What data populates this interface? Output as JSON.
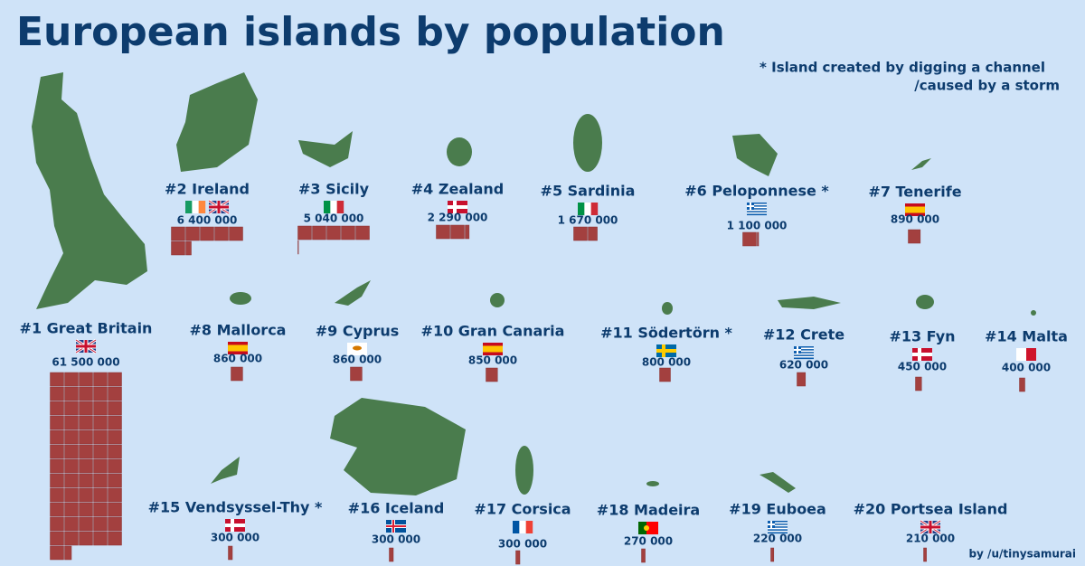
{
  "chart_data": {
    "type": "unit",
    "title": "European islands by population",
    "notes": [
      "* Island created by digging a channel",
      "/caused by a storm"
    ],
    "credit": "by /u/tinysamurai",
    "color": "#a3403f",
    "categories": [
      "#1 Great Britain",
      "#2 Ireland",
      "#3 Sicily",
      "#4 Zealand",
      "#5 Sardinia",
      "#6 Peloponnese *",
      "#7 Tenerife",
      "#8 Mallorca",
      "#9 Cyprus",
      "#10 Gran Canaria",
      "#11 Södertörn *",
      "#12 Crete",
      "#13 Fyn",
      "#14 Malta",
      "#15 Vendsyssel-Thy *",
      "#16 Iceland",
      "#17 Corsica",
      "#18 Madeira",
      "#19 Euboea",
      "#20 Portsea Island"
    ],
    "values": [
      61500000,
      6400000,
      5040000,
      2290000,
      1670000,
      1100000,
      890000,
      860000,
      860000,
      850000,
      800000,
      620000,
      450000,
      400000,
      300000,
      300000,
      300000,
      270000,
      220000,
      210000
    ],
    "value_labels": [
      "61 500 000",
      "6 400 000",
      "5 040 000",
      "2 290 000",
      "1 670 000",
      "1 100 000",
      "890 000",
      "860 000",
      "860 000",
      "850 000",
      "800 000",
      "620 000",
      "450 000",
      "400 000",
      "300 000",
      "300 000",
      "300 000",
      "270 000",
      "220 000",
      "210 000"
    ]
  }
}
